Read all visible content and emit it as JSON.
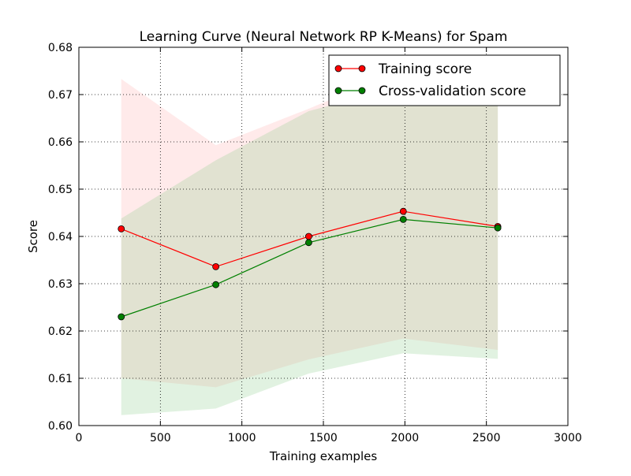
{
  "chart_data": {
    "type": "line",
    "title": "Learning Curve (Neural Network RP K-Means) for Spam",
    "xlabel": "Training examples",
    "ylabel": "Score",
    "xlim": [
      0,
      3000
    ],
    "ylim": [
      0.6,
      0.68
    ],
    "xticks": [
      0,
      500,
      1000,
      1500,
      2000,
      2500,
      3000
    ],
    "xtick_labels": [
      "0",
      "500",
      "1000",
      "1500",
      "2000",
      "2500",
      "3000"
    ],
    "yticks": [
      0.6,
      0.61,
      0.62,
      0.63,
      0.64,
      0.65,
      0.66,
      0.67,
      0.68
    ],
    "ytick_labels": [
      "0.60",
      "0.61",
      "0.62",
      "0.63",
      "0.64",
      "0.65",
      "0.66",
      "0.67",
      "0.68"
    ],
    "grid": true,
    "legend_position": "top-right",
    "x": [
      260,
      840,
      1410,
      1990,
      2570
    ],
    "series": [
      {
        "name": "Training score",
        "color": "#ff0000",
        "band_color": "#ffaaaa",
        "values": [
          0.6416,
          0.6336,
          0.64,
          0.6453,
          0.6421
        ],
        "band_upper": [
          0.6733,
          0.6593,
          0.667,
          0.6755,
          0.6752
        ],
        "band_lower": [
          0.61,
          0.6081,
          0.614,
          0.6184,
          0.616
        ]
      },
      {
        "name": "Cross-validation score",
        "color": "#008000",
        "band_color": "#88cc88",
        "values": [
          0.623,
          0.6298,
          0.6387,
          0.6436,
          0.6418
        ],
        "band_upper": [
          0.6438,
          0.6561,
          0.6665,
          0.6718,
          0.6725
        ],
        "band_lower": [
          0.6022,
          0.6036,
          0.611,
          0.6153,
          0.6141
        ]
      }
    ]
  }
}
